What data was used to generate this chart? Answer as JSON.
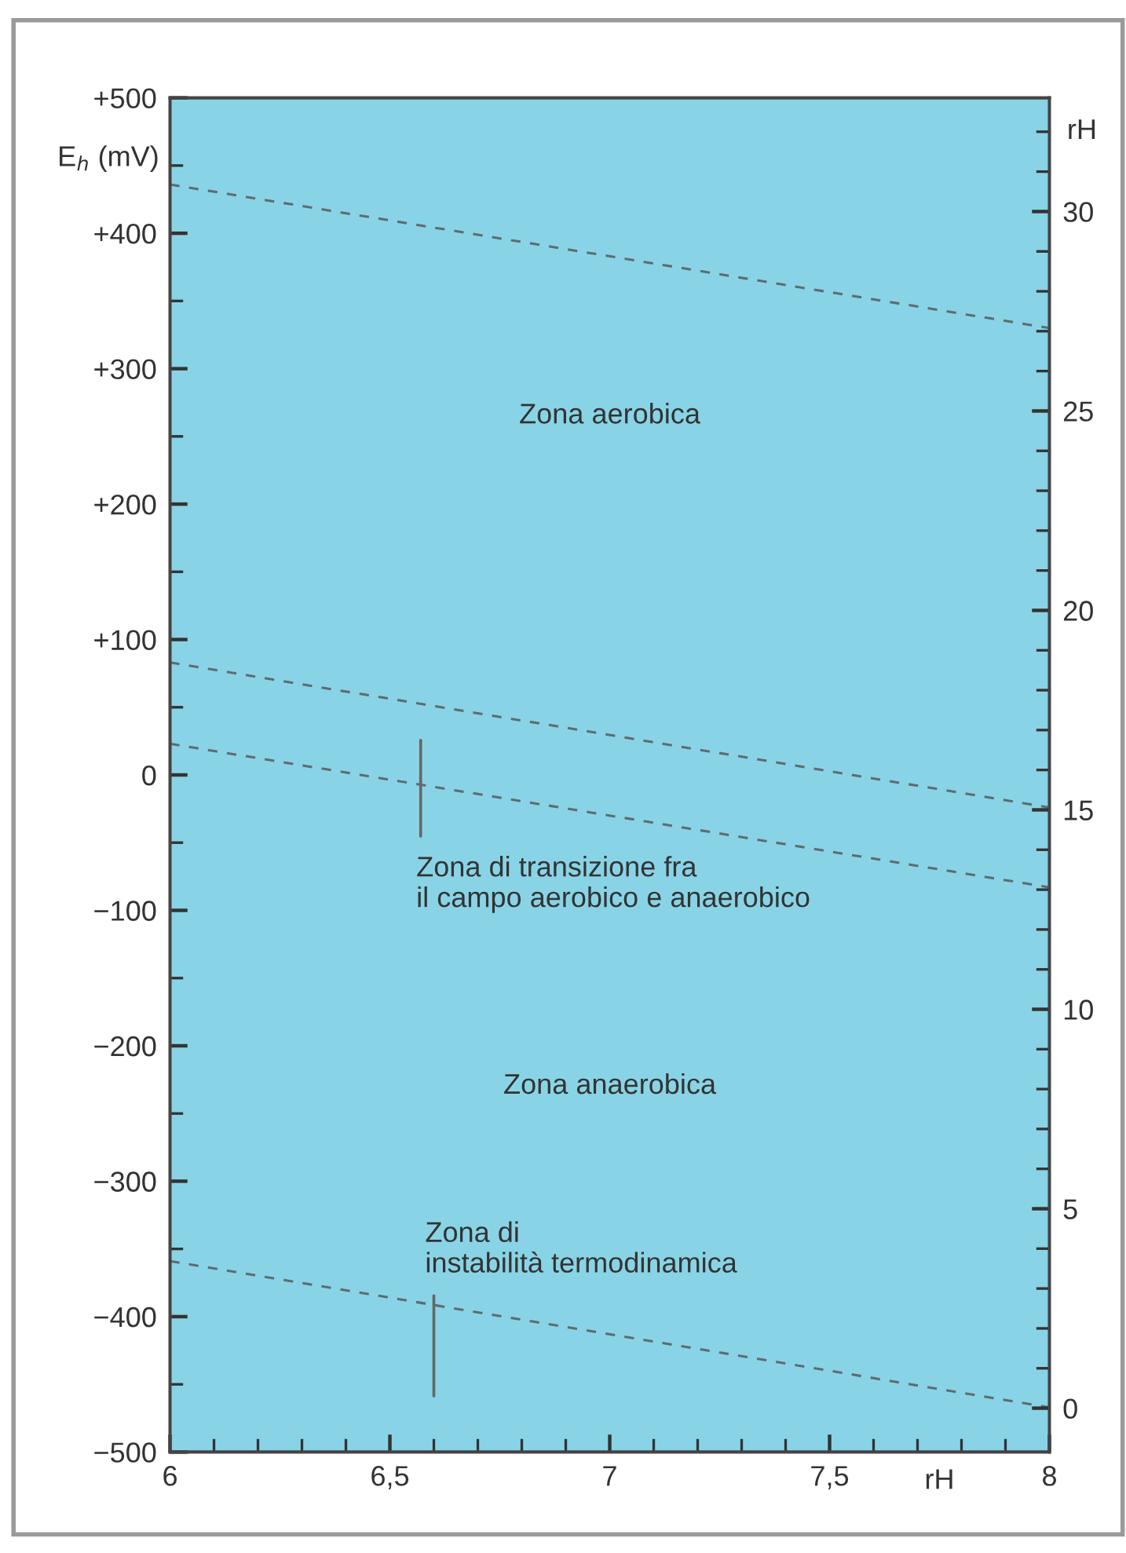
{
  "chart_data": {
    "type": "line",
    "ylabel": "E$_{h}$ (mV)",
    "y2label": "rH",
    "xlabel": "rH",
    "x": [
      6,
      8
    ],
    "series": [
      {
        "color": "#5f6b70",
        "values": [
          436,
          330
        ]
      },
      {
        "color": "#5f6b70",
        "values": [
          83,
          -24
        ]
      },
      {
        "color": "#5f6b70",
        "values": [
          23,
          -83
        ]
      },
      {
        "color": "#5f6b70",
        "values": [
          -359,
          -467
        ]
      }
    ],
    "line_style": "dashed",
    "marker": "none",
    "grid": false,
    "legend": false,
    "xlim": [
      6,
      8
    ],
    "xticks": [
      6,
      {
        "value": 6.1,
        "label": null
      },
      {
        "value": 6.2,
        "label": null
      },
      {
        "value": 6.3,
        "label": null
      },
      {
        "value": 6.4,
        "label": null
      },
      {
        "value": 6.5,
        "label": "6,5"
      },
      {
        "value": 6.6,
        "label": null
      },
      {
        "value": 6.7,
        "label": null
      },
      {
        "value": 6.8,
        "label": null
      },
      {
        "value": 6.9,
        "label": null
      },
      7,
      {
        "value": 7.1,
        "label": null
      },
      {
        "value": 7.2,
        "label": null
      },
      {
        "value": 7.3,
        "label": null
      },
      {
        "value": 7.4,
        "label": null
      },
      {
        "value": 7.5,
        "label": "7,5"
      },
      {
        "value": 7.6,
        "label": null
      },
      {
        "value": 7.7,
        "label": null
      },
      {
        "value": 7.8,
        "label": null
      },
      {
        "value": 7.9,
        "label": null
      },
      8
    ],
    "ylim": [
      -500,
      500
    ],
    "yticks": [
      {
        "value": -500,
        "label": "−500"
      },
      {
        "value": -450,
        "label": null
      },
      {
        "value": -400,
        "label": "−400"
      },
      {
        "value": -350,
        "label": null
      },
      {
        "value": -300,
        "label": "−300"
      },
      {
        "value": -250,
        "label": null
      },
      {
        "value": -200,
        "label": "−200"
      },
      {
        "value": -150,
        "label": null
      },
      {
        "value": -100,
        "label": "−100"
      },
      {
        "value": -50,
        "label": null
      },
      0,
      {
        "value": 50,
        "label": null
      },
      {
        "value": 100,
        "label": "+100"
      },
      {
        "value": 150,
        "label": null
      },
      {
        "value": 200,
        "label": "+200"
      },
      {
        "value": 250,
        "label": null
      },
      {
        "value": 300,
        "label": "+300"
      },
      {
        "value": 350,
        "label": null
      },
      {
        "value": 400,
        "label": "+400"
      },
      {
        "value": 450,
        "label": null
      },
      {
        "value": 500,
        "label": "+500"
      }
    ],
    "y2lim": [
      -1.1,
      32.85
    ],
    "y2ticks": [
      0,
      {
        "value": 1,
        "label": null
      },
      {
        "value": 2,
        "label": null
      },
      {
        "value": 3,
        "label": null
      },
      {
        "value": 4,
        "label": null
      },
      5,
      {
        "value": 6,
        "label": null
      },
      {
        "value": 7,
        "label": null
      },
      {
        "value": 8,
        "label": null
      },
      {
        "value": 9,
        "label": null
      },
      10,
      {
        "value": 11,
        "label": null
      },
      {
        "value": 12,
        "label": null
      },
      {
        "value": 13,
        "label": null
      },
      {
        "value": 14,
        "label": null
      },
      15,
      {
        "value": 16,
        "label": null
      },
      {
        "value": 17,
        "label": null
      },
      {
        "value": 18,
        "label": null
      },
      {
        "value": 19,
        "label": null
      },
      20,
      {
        "value": 21,
        "label": null
      },
      {
        "value": 22,
        "label": null
      },
      {
        "value": 23,
        "label": null
      },
      {
        "value": 24,
        "label": null
      },
      25,
      {
        "value": 26,
        "label": null
      },
      {
        "value": 27,
        "label": null
      },
      {
        "value": 28,
        "label": null
      },
      {
        "value": 29,
        "label": null
      },
      30,
      {
        "value": 31,
        "label": null
      },
      {
        "value": 32,
        "label": null
      }
    ],
    "annotations": [
      "Zona aerobica",
      "Zona anaerobica",
      {
        "text": "Zona di transizione fra\nil campo aerobico e anaerobico",
        "x": 6.57,
        "y": -5
      },
      {
        "text": "Zona di\ninstabilità termodinamica",
        "x": 6.6,
        "y": -391
      }
    ]
  }
}
